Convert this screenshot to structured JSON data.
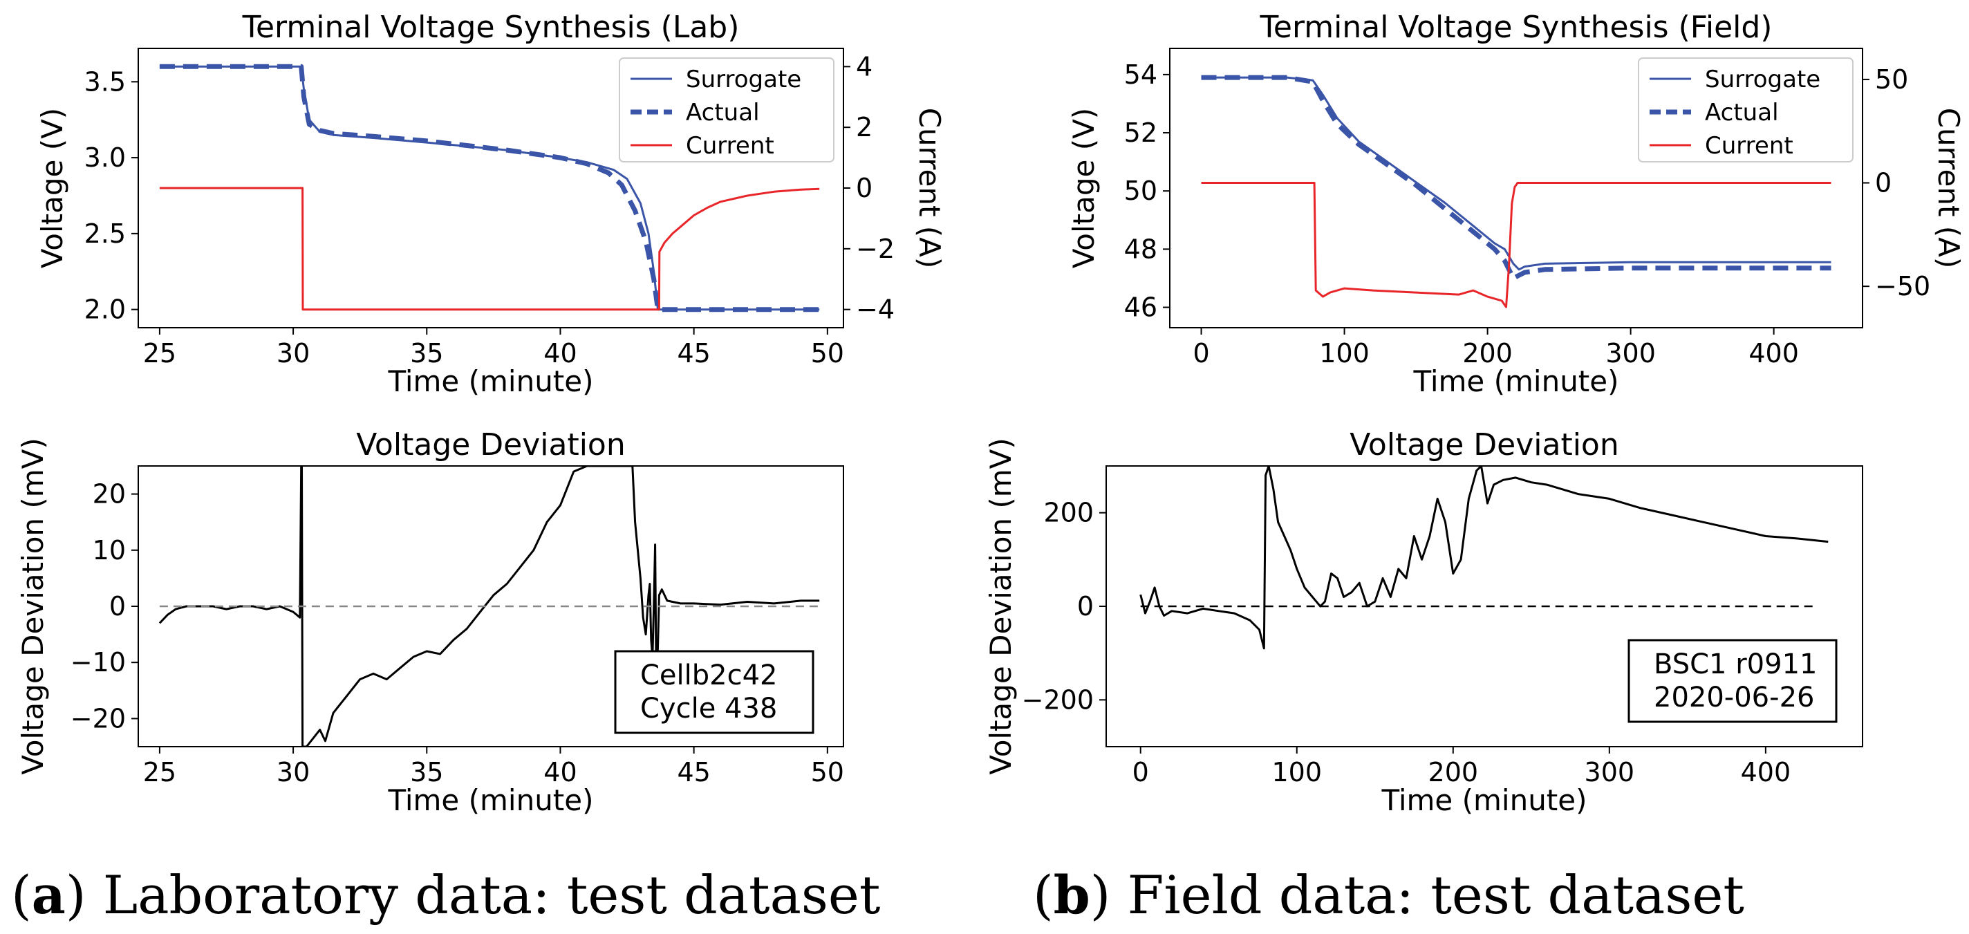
{
  "colors": {
    "surrogate": "#3a54a8",
    "actual": "#3a54a8",
    "current": "#e8262a",
    "deviation": "#000000",
    "zero_line_lab": "#888888",
    "zero_line_field": "#000000"
  },
  "captions": [
    {
      "label": "a",
      "text": " Laboratory data: test dataset"
    },
    {
      "label": "b",
      "text": " Field data: test dataset"
    }
  ],
  "chart_data": [
    {
      "id": "lab-voltage",
      "type": "line",
      "title": "Terminal Voltage Synthesis (Lab)",
      "xlabel": "Time (minute)",
      "ylabel": "Voltage (V)",
      "y2label": "Current (A)",
      "xlim": [
        24.2,
        50.6
      ],
      "ylim": [
        1.88,
        3.72
      ],
      "y2lim": [
        -4.6,
        4.6
      ],
      "xticks": [
        "25",
        "30",
        "35",
        "40",
        "45",
        "50"
      ],
      "xtick_values": [
        25,
        30,
        35,
        40,
        45,
        50
      ],
      "yticks": [
        "2.0",
        "2.5",
        "3.0",
        "3.5"
      ],
      "ytick_values": [
        2.0,
        2.5,
        3.0,
        3.5
      ],
      "y2ticks": [
        "−4",
        "−2",
        "0",
        "2",
        "4"
      ],
      "y2tick_values": [
        -4,
        -2,
        0,
        2,
        4
      ],
      "legend": {
        "position": "top-right",
        "entries": [
          "Surrogate",
          "Actual",
          "Current"
        ]
      },
      "series": [
        {
          "name": "Surrogate",
          "axis": "left",
          "style": "solid",
          "x": [
            25,
            30.3,
            30.4,
            30.6,
            31,
            31.5,
            33,
            35,
            38,
            40,
            41,
            42,
            42.5,
            43,
            43.3,
            43.5,
            43.65,
            44,
            46,
            49.7
          ],
          "y": [
            3.6,
            3.6,
            3.45,
            3.25,
            3.17,
            3.15,
            3.13,
            3.1,
            3.05,
            3.0,
            2.97,
            2.92,
            2.86,
            2.7,
            2.5,
            2.25,
            2.0,
            2.0,
            2.0,
            2.0
          ]
        },
        {
          "name": "Actual",
          "axis": "left",
          "style": "dashed",
          "x": [
            25,
            30.3,
            30.4,
            30.6,
            31,
            31.5,
            33,
            35,
            38,
            40,
            41,
            41.8,
            42.3,
            42.8,
            43.2,
            43.5,
            43.65,
            44,
            46,
            49.7
          ],
          "y": [
            3.6,
            3.6,
            3.4,
            3.22,
            3.18,
            3.16,
            3.14,
            3.11,
            3.05,
            3.0,
            2.96,
            2.9,
            2.82,
            2.65,
            2.45,
            2.2,
            2.0,
            2.0,
            2.0,
            2.0
          ]
        },
        {
          "name": "Current",
          "axis": "right",
          "style": "solid",
          "x": [
            25,
            30.35,
            30.36,
            43.7,
            43.71,
            43.9,
            44.2,
            44.6,
            45,
            45.5,
            46,
            47,
            48,
            49,
            49.7
          ],
          "y": [
            0,
            0,
            -4,
            -4,
            -2.1,
            -1.8,
            -1.5,
            -1.2,
            -0.9,
            -0.65,
            -0.45,
            -0.25,
            -0.12,
            -0.05,
            -0.03
          ]
        }
      ]
    },
    {
      "id": "field-voltage",
      "type": "line",
      "title": "Terminal Voltage Synthesis (Field)",
      "xlabel": "Time (minute)",
      "ylabel": "Voltage (V)",
      "y2label": "Current (A)",
      "xlim": [
        -22,
        462
      ],
      "ylim": [
        45.3,
        54.9
      ],
      "y2lim": [
        -70,
        65
      ],
      "xticks": [
        "0",
        "100",
        "200",
        "300",
        "400"
      ],
      "xtick_values": [
        0,
        100,
        200,
        300,
        400
      ],
      "yticks": [
        "46",
        "48",
        "50",
        "52",
        "54"
      ],
      "ytick_values": [
        46,
        48,
        50,
        52,
        54
      ],
      "y2ticks": [
        "−50",
        "0",
        "50"
      ],
      "y2tick_values": [
        -50,
        0,
        50
      ],
      "legend": {
        "position": "top-right",
        "entries": [
          "Surrogate",
          "Actual",
          "Current"
        ]
      },
      "series": [
        {
          "name": "Surrogate",
          "axis": "left",
          "style": "solid",
          "x": [
            0,
            60,
            78,
            85,
            95,
            110,
            130,
            150,
            170,
            190,
            205,
            212,
            218,
            222,
            226,
            240,
            300,
            440
          ],
          "y": [
            53.9,
            53.9,
            53.8,
            53.3,
            52.5,
            51.7,
            51.0,
            50.3,
            49.6,
            48.8,
            48.2,
            48.0,
            47.5,
            47.3,
            47.4,
            47.5,
            47.55,
            47.55
          ]
        },
        {
          "name": "Actual",
          "axis": "left",
          "style": "dashed",
          "x": [
            0,
            60,
            78,
            85,
            95,
            110,
            130,
            150,
            170,
            190,
            205,
            212,
            218,
            222,
            226,
            240,
            300,
            440
          ],
          "y": [
            53.9,
            53.9,
            53.75,
            53.1,
            52.3,
            51.6,
            50.9,
            50.2,
            49.4,
            48.6,
            48.0,
            47.6,
            47.0,
            47.1,
            47.2,
            47.3,
            47.35,
            47.35
          ]
        },
        {
          "name": "Current",
          "axis": "right",
          "style": "solid",
          "x": [
            0,
            79,
            80,
            85,
            90,
            100,
            120,
            150,
            180,
            190,
            200,
            210,
            213,
            215,
            217,
            219,
            221,
            440
          ],
          "y": [
            0,
            0,
            -52,
            -55,
            -53,
            -51,
            -52,
            -53,
            -54,
            -52,
            -55,
            -57,
            -60,
            -40,
            -10,
            -2,
            0,
            0
          ]
        }
      ]
    },
    {
      "id": "lab-deviation",
      "type": "line",
      "title": "Voltage Deviation",
      "xlabel": "Time (minute)",
      "ylabel": "Voltage Deviation (mV)",
      "xlim": [
        24.2,
        50.6
      ],
      "ylim": [
        -25,
        25
      ],
      "xticks": [
        "25",
        "30",
        "35",
        "40",
        "45",
        "50"
      ],
      "xtick_values": [
        25,
        30,
        35,
        40,
        45,
        50
      ],
      "yticks": [
        "−20",
        "−10",
        "0",
        "10",
        "20"
      ],
      "ytick_values": [
        -20,
        -10,
        0,
        10,
        20
      ],
      "annotation": {
        "lines": [
          "Cellb2c42",
          "Cycle 438"
        ],
        "position": "lower-right"
      },
      "series": [
        {
          "name": "Deviation",
          "style": "solid",
          "x": [
            25,
            25.3,
            25.6,
            26,
            27,
            27.5,
            28,
            28.5,
            29,
            29.5,
            30,
            30.25,
            30.3,
            30.32,
            30.35,
            30.38,
            30.5,
            31,
            31.2,
            31.5,
            32,
            32.5,
            33,
            33.5,
            34,
            34.5,
            35,
            35.5,
            36,
            36.5,
            37,
            37.5,
            38,
            38.5,
            39,
            39.5,
            40,
            40.5,
            41,
            42.7,
            42.8,
            43,
            43.1,
            43.2,
            43.3,
            43.35,
            43.4,
            43.45,
            43.5,
            43.55,
            43.6,
            43.7,
            43.8,
            44,
            44.5,
            45,
            46,
            47,
            48,
            49,
            49.7
          ],
          "y": [
            -3,
            -1.5,
            -0.5,
            0,
            0,
            -0.5,
            0,
            0,
            -0.5,
            0,
            -1,
            -2,
            25,
            25,
            -25,
            -25,
            -25,
            -22,
            -24,
            -19,
            -16,
            -13,
            -12,
            -13,
            -11,
            -9,
            -8,
            -8.5,
            -6,
            -4,
            -1,
            2,
            4,
            7,
            10,
            15,
            18,
            24,
            25,
            25,
            15,
            5,
            -2,
            -5,
            2,
            4,
            -6,
            -9,
            0,
            11,
            -17,
            2,
            3,
            1,
            0.5,
            0.5,
            0.3,
            0.8,
            0.5,
            1,
            1
          ]
        },
        {
          "name": "Zero",
          "style": "dashed",
          "x": [
            25,
            49.7
          ],
          "y": [
            0,
            0
          ]
        }
      ]
    },
    {
      "id": "field-deviation",
      "type": "line",
      "title": "Voltage Deviation",
      "xlabel": "Time (minute)",
      "ylabel": "Voltage Deviation (mV)",
      "xlim": [
        -22,
        462
      ],
      "ylim": [
        -300,
        300
      ],
      "xticks": [
        "0",
        "100",
        "200",
        "300",
        "400"
      ],
      "xtick_values": [
        0,
        100,
        200,
        300,
        400
      ],
      "yticks": [
        "−200",
        "0",
        "200"
      ],
      "ytick_values": [
        -200,
        0,
        200
      ],
      "annotation": {
        "lines": [
          "BSC1 r0911",
          "2020-06-26"
        ],
        "position": "lower-right"
      },
      "series": [
        {
          "name": "Deviation",
          "style": "solid",
          "x": [
            0,
            3,
            6,
            9,
            12,
            15,
            20,
            30,
            40,
            50,
            60,
            70,
            76,
            79,
            80,
            82,
            85,
            88,
            92,
            96,
            100,
            105,
            110,
            115,
            118,
            122,
            126,
            130,
            135,
            140,
            145,
            150,
            155,
            160,
            165,
            170,
            175,
            180,
            185,
            190,
            195,
            200,
            205,
            210,
            215,
            218,
            222,
            226,
            232,
            240,
            250,
            260,
            270,
            280,
            290,
            300,
            320,
            340,
            360,
            380,
            400,
            420,
            440
          ],
          "y": [
            25,
            -15,
            10,
            40,
            0,
            -20,
            -10,
            -15,
            -5,
            -10,
            -15,
            -30,
            -50,
            -90,
            280,
            300,
            250,
            180,
            150,
            120,
            80,
            40,
            20,
            0,
            10,
            70,
            60,
            20,
            30,
            50,
            0,
            10,
            60,
            20,
            80,
            60,
            150,
            100,
            150,
            230,
            180,
            70,
            100,
            230,
            290,
            300,
            220,
            260,
            270,
            275,
            265,
            260,
            250,
            240,
            235,
            230,
            210,
            195,
            180,
            165,
            150,
            145,
            138
          ]
        },
        {
          "name": "Zero",
          "style": "dashed",
          "x": [
            0,
            430
          ],
          "y": [
            0,
            0
          ]
        }
      ]
    }
  ]
}
